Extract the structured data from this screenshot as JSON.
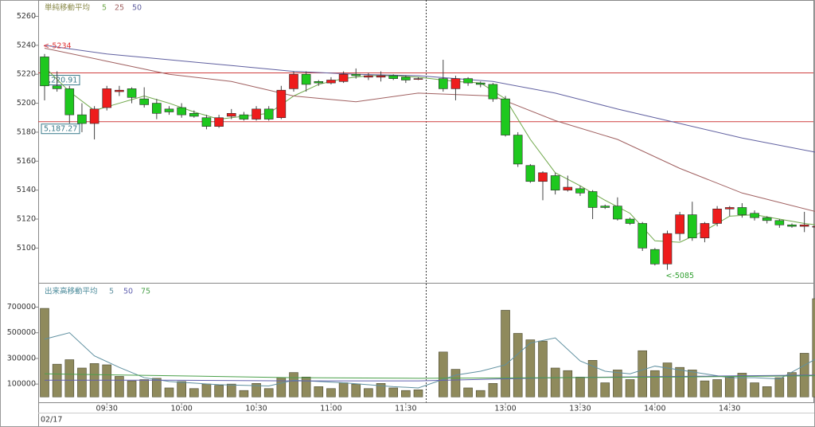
{
  "chart_data": [
    {
      "type": "candlestick",
      "legend_title": "単純移動平均",
      "up_color": "#ee1c1c",
      "down_color": "#1ec81e",
      "open": [
        5232,
        5212,
        5210,
        5192,
        5186,
        5197,
        5208,
        5210,
        5203,
        5200,
        5196,
        5197,
        5193,
        5190,
        5184,
        5191,
        5192,
        5189,
        5196,
        5190,
        5210,
        5220,
        5215,
        5214,
        5215,
        5220,
        5218,
        5218,
        5219,
        5218,
        5217,
        5217,
        5210,
        5217,
        5214,
        5213,
        5203,
        5178,
        5157,
        5146,
        5150,
        5140,
        5141,
        5139,
        5129,
        5129,
        5120,
        5117,
        5099,
        5089,
        5110,
        5123,
        5107,
        5117,
        5127,
        5128,
        5124,
        5121,
        5119,
        5116,
        5115,
        5115
      ],
      "high": [
        5234,
        5222,
        5212,
        5200,
        5198,
        5212,
        5212,
        5211,
        5211,
        5203,
        5198,
        5200,
        5195,
        5192,
        5192,
        5196,
        5194,
        5198,
        5198,
        5212,
        5222,
        5222,
        5216,
        5218,
        5222,
        5224,
        5221,
        5222,
        5220,
        5219,
        5218,
        5230,
        5219,
        5218,
        5215,
        5214,
        5205,
        5180,
        5158,
        5153,
        5152,
        5150,
        5143,
        5140,
        5130,
        5135,
        5121,
        5118,
        5100,
        5112,
        5125,
        5132,
        5118,
        5129,
        5129,
        5131,
        5126,
        5122,
        5120,
        5117,
        5125,
        5115
      ],
      "low": [
        5202,
        5208,
        5186,
        5180,
        5175,
        5195,
        5205,
        5200,
        5197,
        5189,
        5192,
        5190,
        5190,
        5182,
        5183,
        5189,
        5188,
        5188,
        5188,
        5189,
        5208,
        5208,
        5212,
        5213,
        5214,
        5217,
        5216,
        5215,
        5216,
        5214,
        5216,
        5208,
        5202,
        5212,
        5211,
        5201,
        5177,
        5156,
        5145,
        5133,
        5137,
        5139,
        5136,
        5120,
        5127,
        5119,
        5116,
        5098,
        5088,
        5085,
        5105,
        5105,
        5104,
        5115,
        5122,
        5121,
        5119,
        5117,
        5114,
        5114,
        5111,
        5115
      ],
      "close": [
        5212,
        5210,
        5192,
        5186,
        5196,
        5210,
        5209,
        5204,
        5199,
        5193,
        5194,
        5192,
        5191,
        5184,
        5190,
        5193,
        5189,
        5196,
        5189,
        5209,
        5220,
        5213,
        5214,
        5216,
        5220,
        5219,
        5219,
        5219,
        5217,
        5216,
        5217,
        5210,
        5217,
        5214,
        5213,
        5203,
        5178,
        5158,
        5146,
        5152,
        5140,
        5142,
        5138,
        5128,
        5128,
        5120,
        5117,
        5100,
        5089,
        5110,
        5123,
        5107,
        5117,
        5127,
        5128,
        5123,
        5121,
        5119,
        5116,
        5115,
        5116,
        5115
      ],
      "moving_averages": [
        {
          "name": "5",
          "color": "#6fa84a",
          "x": [
            0,
            2,
            4,
            6,
            8,
            10,
            12,
            14,
            16,
            18,
            20,
            22,
            24,
            26,
            28,
            30,
            32,
            34,
            36,
            38,
            40,
            42,
            44,
            46,
            48,
            50,
            52,
            54,
            56,
            58,
            60,
            61
          ],
          "values": [
            5225,
            5208,
            5195,
            5200,
            5205,
            5200,
            5194,
            5189,
            5191,
            5193,
            5205,
            5213,
            5217,
            5219,
            5219,
            5218,
            5215,
            5214,
            5203,
            5175,
            5152,
            5143,
            5133,
            5124,
            5105,
            5104,
            5112,
            5122,
            5123,
            5120,
            5117,
            5116
          ]
        },
        {
          "name": "25",
          "color": "#a06060",
          "x": [
            0,
            5,
            10,
            15,
            20,
            25,
            30,
            35,
            40,
            45,
            50,
            55,
            61
          ],
          "values": [
            5238,
            5229,
            5220,
            5215,
            5205,
            5201,
            5207,
            5205,
            5188,
            5175,
            5155,
            5138,
            5125
          ]
        },
        {
          "name": "50",
          "color": "#6060a0",
          "x": [
            0,
            5,
            10,
            15,
            20,
            25,
            30,
            35,
            40,
            45,
            50,
            55,
            61
          ],
          "values": [
            5240,
            5234,
            5230,
            5226,
            5222,
            5220,
            5219,
            5215,
            5207,
            5196,
            5186,
            5176,
            5166
          ]
        }
      ],
      "hlines": [
        {
          "value": 5220.91,
          "label": "5,220.91"
        },
        {
          "value": 5187.27,
          "label": "5,187.27"
        }
      ],
      "annotations": [
        {
          "text": "<-5234",
          "x": 0,
          "value": 5234,
          "color": "#e03030"
        },
        {
          "text": "<-5085",
          "x": 49,
          "value": 5085,
          "color": "#30a030"
        }
      ],
      "ylim": [
        5076,
        5271
      ],
      "yticks": [
        5100,
        5120,
        5140,
        5160,
        5180,
        5200,
        5220,
        5240,
        5260
      ],
      "xticks": [
        {
          "value": 5,
          "label": "09:30"
        },
        {
          "value": 11,
          "label": "10:00"
        },
        {
          "value": 17,
          "label": "10:30"
        },
        {
          "value": 23,
          "label": "11:00"
        },
        {
          "value": 29,
          "label": "11:30"
        },
        {
          "value": 36,
          "label": "13:00"
        },
        {
          "value": 42,
          "label": "13:30"
        },
        {
          "value": 48,
          "label": "14:00"
        },
        {
          "value": 54,
          "label": "14:30"
        }
      ],
      "date_label": "02/17"
    },
    {
      "type": "volume",
      "legend_title": "出来高移動平均",
      "color": "#8f8a5c",
      "values": [
        690000,
        255000,
        290000,
        225000,
        260000,
        250000,
        160000,
        125000,
        135000,
        145000,
        70000,
        120000,
        65000,
        100000,
        90000,
        100000,
        50000,
        105000,
        65000,
        150000,
        190000,
        155000,
        80000,
        65000,
        110000,
        100000,
        65000,
        105000,
        70000,
        50000,
        55000,
        350000,
        215000,
        70000,
        50000,
        105000,
        675000,
        495000,
        445000,
        435000,
        225000,
        205000,
        155000,
        285000,
        110000,
        210000,
        135000,
        360000,
        205000,
        265000,
        230000,
        210000,
        125000,
        135000,
        155000,
        185000,
        110000,
        80000,
        150000,
        190000,
        340000,
        765000
      ],
      "moving_averages": [
        {
          "name": "5",
          "color": "#5f90a0",
          "x": [
            0,
            2,
            4,
            6,
            8,
            10,
            14,
            18,
            20,
            24,
            28,
            30,
            32,
            34,
            36,
            38,
            40,
            42,
            44,
            46,
            48,
            50,
            52,
            54,
            56,
            58,
            61
          ],
          "values": [
            450000,
            500000,
            320000,
            230000,
            150000,
            120000,
            95000,
            85000,
            130000,
            110000,
            80000,
            70000,
            170000,
            200000,
            250000,
            420000,
            460000,
            280000,
            200000,
            180000,
            240000,
            210000,
            180000,
            150000,
            150000,
            140000,
            300000
          ]
        },
        {
          "name": "50",
          "color": "#6060b0",
          "x": [
            0,
            10,
            20,
            30,
            40,
            50,
            61
          ],
          "values": [
            130000,
            130000,
            125000,
            125000,
            150000,
            160000,
            170000
          ]
        },
        {
          "name": "75",
          "color": "#4aa04a",
          "x": [
            0,
            10,
            20,
            30,
            40,
            50,
            61
          ],
          "values": [
            180000,
            165000,
            150000,
            145000,
            150000,
            155000,
            165000
          ]
        }
      ],
      "ylim": [
        -42000,
        886000
      ],
      "yticks": [
        100000,
        300000,
        500000,
        700000
      ]
    }
  ]
}
